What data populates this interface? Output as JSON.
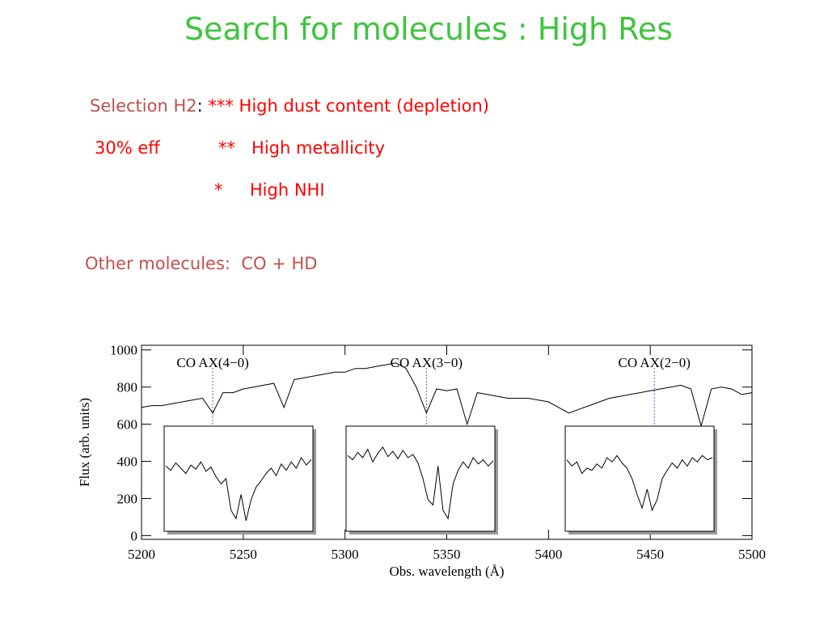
{
  "header": {
    "title": "Search for molecules : High Res"
  },
  "body": {
    "line1": {
      "label": "Selection H2",
      "sep": ":",
      "text": "*** High dust content (depletion)"
    },
    "line2": {
      "label": "30% eff",
      "text": "**   High metallicity"
    },
    "line3": {
      "text": "*     High NHI"
    },
    "line4": {
      "text": "Other molecules:  CO + HD"
    }
  },
  "figure": {
    "type": "line",
    "color": "#000000",
    "xlabel": "Obs. wavelength (Å)",
    "ylabel": "Flux (arb. units)",
    "xlim": [
      5200,
      5500
    ],
    "ylim": [
      -20,
      1025
    ],
    "xticks": [
      5200,
      5250,
      5300,
      5350,
      5400,
      5450,
      5500
    ],
    "yticks": [
      0,
      200,
      400,
      600,
      800,
      1000
    ],
    "x": [
      5200,
      5205,
      5210,
      5215,
      5220,
      5225,
      5230,
      5235,
      5240,
      5245,
      5250,
      5255,
      5260,
      5265,
      5270,
      5275,
      5280,
      5285,
      5290,
      5295,
      5300,
      5305,
      5310,
      5315,
      5320,
      5325,
      5330,
      5335,
      5340,
      5345,
      5350,
      5355,
      5360,
      5365,
      5370,
      5375,
      5380,
      5385,
      5390,
      5395,
      5400,
      5405,
      5410,
      5415,
      5420,
      5425,
      5430,
      5435,
      5440,
      5445,
      5450,
      5455,
      5460,
      5465,
      5470,
      5475,
      5480,
      5485,
      5490,
      5495,
      5500
    ],
    "values": [
      690,
      700,
      700,
      710,
      720,
      730,
      740,
      660,
      770,
      770,
      790,
      800,
      810,
      820,
      690,
      840,
      850,
      860,
      870,
      880,
      880,
      900,
      900,
      910,
      920,
      930,
      900,
      800,
      660,
      790,
      780,
      790,
      600,
      770,
      760,
      750,
      740,
      740,
      740,
      730,
      720,
      690,
      660,
      680,
      700,
      720,
      740,
      750,
      760,
      770,
      780,
      790,
      800,
      810,
      790,
      590,
      790,
      800,
      790,
      760,
      770
    ],
    "annotations": [
      {
        "text": "CO AX(4−0)",
        "x": 5235
      },
      {
        "text": "CO AX(3−0)",
        "x": 5340
      },
      {
        "text": "CO AX(2−0)",
        "x": 5452
      }
    ],
    "insets": [
      {
        "values": [
          0.62,
          0.58,
          0.65,
          0.6,
          0.55,
          0.63,
          0.59,
          0.66,
          0.57,
          0.61,
          0.52,
          0.45,
          0.5,
          0.2,
          0.12,
          0.35,
          0.1,
          0.3,
          0.42,
          0.48,
          0.55,
          0.6,
          0.53,
          0.64,
          0.58,
          0.66,
          0.6,
          0.7,
          0.63,
          0.68
        ]
      },
      {
        "values": [
          0.72,
          0.68,
          0.75,
          0.7,
          0.78,
          0.66,
          0.74,
          0.8,
          0.71,
          0.76,
          0.69,
          0.77,
          0.7,
          0.73,
          0.65,
          0.5,
          0.3,
          0.25,
          0.62,
          0.2,
          0.12,
          0.45,
          0.58,
          0.66,
          0.6,
          0.7,
          0.64,
          0.68,
          0.62,
          0.67
        ]
      },
      {
        "values": [
          0.68,
          0.62,
          0.66,
          0.55,
          0.6,
          0.58,
          0.64,
          0.6,
          0.7,
          0.66,
          0.72,
          0.65,
          0.6,
          0.5,
          0.35,
          0.22,
          0.4,
          0.2,
          0.3,
          0.5,
          0.58,
          0.65,
          0.6,
          0.68,
          0.62,
          0.7,
          0.66,
          0.72,
          0.68,
          0.7
        ]
      }
    ]
  }
}
